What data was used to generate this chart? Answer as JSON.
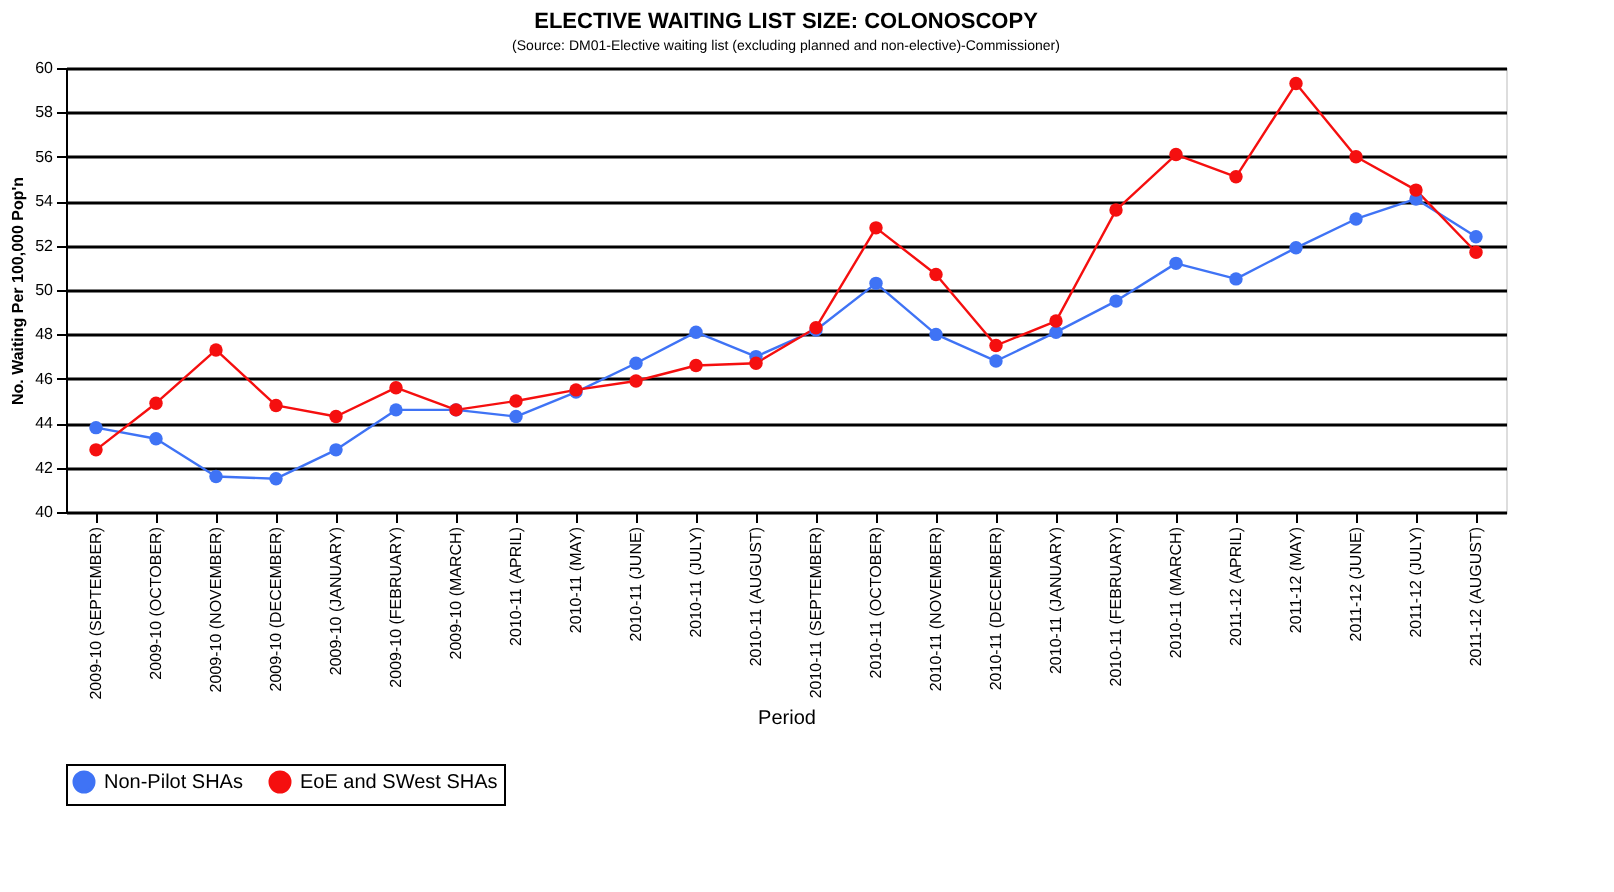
{
  "chart_data": {
    "type": "line",
    "title": "ELECTIVE WAITING LIST SIZE: COLONOSCOPY",
    "subtitle": "(Source: DM01-Elective waiting list (excluding planned and non-elective)-Commissioner)",
    "xlabel": "Period",
    "ylabel": "No. Waiting Per 100,000 Pop'n",
    "categories": [
      "2009-10 (SEPTEMBER)",
      "2009-10 (OCTOBER)",
      "2009-10 (NOVEMBER)",
      "2009-10 (DECEMBER)",
      "2009-10 (JANUARY)",
      "2009-10 (FEBRUARY)",
      "2009-10 (MARCH)",
      "2010-11 (APRIL)",
      "2010-11 (MAY)",
      "2010-11 (JUNE)",
      "2010-11 (JULY)",
      "2010-11 (AUGUST)",
      "2010-11 (SEPTEMBER)",
      "2010-11 (OCTOBER)",
      "2010-11 (NOVEMBER)",
      "2010-11 (DECEMBER)",
      "2010-11 (JANUARY)",
      "2010-11 (FEBRUARY)",
      "2010-11 (MARCH)",
      "2011-12 (APRIL)",
      "2011-12 (MAY)",
      "2011-12 (JUNE)",
      "2011-12 (JULY)",
      "2011-12 (AUGUST)"
    ],
    "series": [
      {
        "name": "Non-Pilot SHAs",
        "color": "#3f73f5",
        "values": [
          43.8,
          43.3,
          41.6,
          41.5,
          42.8,
          44.6,
          44.6,
          44.3,
          45.4,
          46.7,
          48.1,
          47.0,
          48.2,
          50.3,
          48.0,
          46.8,
          48.1,
          49.5,
          51.2,
          50.5,
          51.9,
          53.2,
          54.1,
          52.4
        ]
      },
      {
        "name": "EoE and SWest SHAs",
        "color": "#f50f0f",
        "values": [
          42.8,
          44.9,
          47.3,
          44.8,
          44.3,
          45.6,
          44.6,
          45.0,
          45.5,
          45.9,
          46.6,
          46.7,
          48.3,
          52.8,
          50.7,
          47.5,
          48.6,
          53.6,
          56.1,
          55.1,
          59.3,
          56.0,
          54.5,
          51.7
        ]
      }
    ],
    "ylim": [
      40,
      60
    ],
    "yticks": [
      40,
      42,
      44,
      46,
      48,
      50,
      52,
      54,
      56,
      58,
      60
    ],
    "grid": "y",
    "legend": "bottom",
    "marker": "circle",
    "line_style": "solid"
  }
}
